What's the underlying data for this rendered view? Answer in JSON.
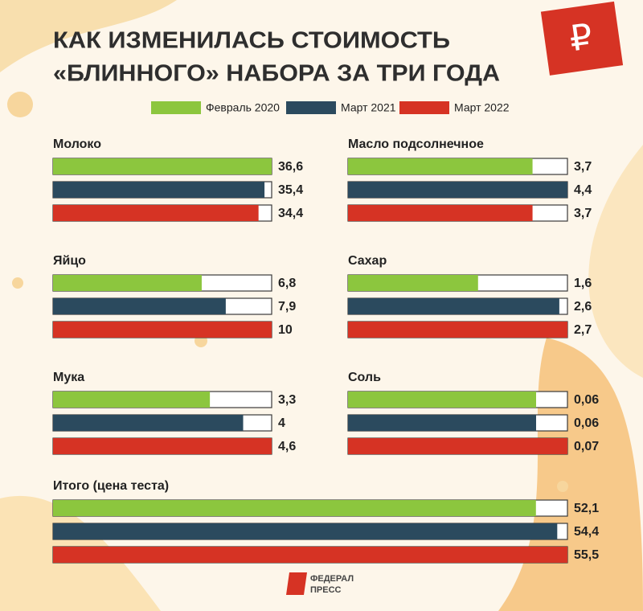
{
  "title": [
    "КАК ИЗМЕНИЛАСЬ СТОИМОСТЬ",
    "«БЛИННОГО» НАБОРА ЗА ТРИ ГОДА"
  ],
  "badge": "₽",
  "legend": [
    {
      "name": "Февраль 2020",
      "color": "#8cc63e"
    },
    {
      "name": "Март 2021",
      "color": "#2b4a5e"
    },
    {
      "name": "Март 2022",
      "color": "#d63324"
    }
  ],
  "chart_data": [
    {
      "type": "bar",
      "title": "Молоко",
      "values": [
        36.6,
        35.4,
        34.4
      ],
      "value_labels": [
        "36,6",
        "35,4",
        "34,4"
      ],
      "xlim": [
        0,
        36.6
      ]
    },
    {
      "type": "bar",
      "title": "Масло подсолнечное",
      "values": [
        3.7,
        4.4,
        3.7
      ],
      "value_labels": [
        "3,7",
        "4,4",
        "3,7"
      ],
      "xlim": [
        0,
        4.4
      ]
    },
    {
      "type": "bar",
      "title": "Яйцо",
      "values": [
        6.8,
        7.9,
        10
      ],
      "value_labels": [
        "6,8",
        "7,9",
        "10"
      ],
      "xlim": [
        0,
        10
      ]
    },
    {
      "type": "bar",
      "title": "Сахар",
      "values": [
        1.6,
        2.6,
        2.7
      ],
      "value_labels": [
        "1,6",
        "2,6",
        "2,7"
      ],
      "xlim": [
        0,
        2.7
      ]
    },
    {
      "type": "bar",
      "title": "Мука",
      "values": [
        3.3,
        4,
        4.6
      ],
      "value_labels": [
        "3,3",
        "4",
        "4,6"
      ],
      "xlim": [
        0,
        4.6
      ]
    },
    {
      "type": "bar",
      "title": "Соль",
      "values": [
        0.06,
        0.06,
        0.07
      ],
      "value_labels": [
        "0,06",
        "0,06",
        "0,07"
      ],
      "xlim": [
        0,
        0.07
      ]
    },
    {
      "type": "bar",
      "title": "Итого (цена теста)",
      "values": [
        52.1,
        54.4,
        55.5
      ],
      "value_labels": [
        "52,1",
        "54,4",
        "55,5"
      ],
      "xlim": [
        0,
        55.5
      ]
    }
  ],
  "logo": [
    "ФЕДЕРАЛ",
    "ПРЕСС"
  ]
}
